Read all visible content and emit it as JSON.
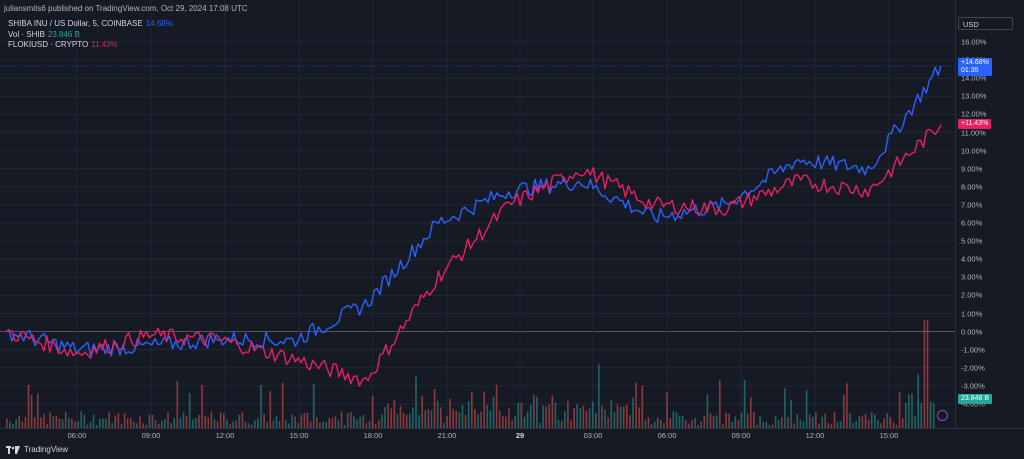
{
  "header": {
    "published": "juliansmits6 published on TradingView.com, Oct 29, 2024 17:08 UTC"
  },
  "legend": {
    "main_name": "SHIBA INU / US Dollar, 5, COINBASE",
    "main_value": "14.68%",
    "vol_name": "Vol · SHIB",
    "vol_value": "23.846 B",
    "compare_name": "FLOKIUSD · CRYPTO",
    "compare_value": "11.43%"
  },
  "currency_button": "USD",
  "colors": {
    "shib": "#2962ff",
    "floki": "#e91e63",
    "vol_up": "#26a69a",
    "vol_down": "#ef5350",
    "background": "#161a25",
    "grid": "#232733"
  },
  "price_axis": {
    "labels": [
      "16.00%",
      "15.00%",
      "14.00%",
      "13.00%",
      "12.00%",
      "11.00%",
      "10.00%",
      "9.00%",
      "8.00%",
      "7.00%",
      "6.00%",
      "5.00%",
      "4.00%",
      "3.00%",
      "2.00%",
      "1.00%",
      "0.00%",
      "-1.00%",
      "-2.00%",
      "-3.00%",
      "-4.00%"
    ],
    "tag_shib_value": "+14.68%",
    "tag_shib_countdown": "01:35",
    "tag_floki_value": "+11.43%",
    "tag_volume": "23.846 B"
  },
  "time_axis": {
    "labels": [
      "06:00",
      "09:00",
      "12:00",
      "15:00",
      "18:00",
      "21:00",
      "29",
      "03:00",
      "06:00",
      "09:00",
      "12:00",
      "15:00"
    ]
  },
  "footer": {
    "brand": "TradingView"
  },
  "chart_data": {
    "type": "line",
    "y_unit": "%",
    "ylim": [
      -4,
      16
    ],
    "x": [
      "Oct 28 03:00",
      "Oct 28 06:00",
      "Oct 28 09:00",
      "Oct 28 12:00",
      "Oct 28 15:00",
      "Oct 28 18:00",
      "Oct 28 21:00",
      "Oct 29 00:00",
      "Oct 29 03:00",
      "Oct 29 06:00",
      "Oct 29 09:00",
      "Oct 29 12:00",
      "Oct 29 15:00",
      "Oct 29 17:08"
    ],
    "series": [
      {
        "name": "SHIBA INU / US Dollar",
        "values": [
          0.0,
          -1.0,
          -0.8,
          -0.4,
          -0.5,
          1.5,
          6.0,
          7.8,
          8.3,
          6.3,
          7.0,
          9.5,
          9.0,
          14.68
        ]
      },
      {
        "name": "FLOKIUSD",
        "values": [
          0.0,
          -1.2,
          -0.2,
          -0.5,
          -1.5,
          -2.7,
          3.0,
          7.0,
          9.0,
          7.0,
          6.8,
          8.3,
          7.8,
          11.43
        ]
      }
    ],
    "volume": {
      "name": "Vol · SHIB",
      "last": "23.846 B"
    },
    "grid": true,
    "legend": "top-left"
  }
}
